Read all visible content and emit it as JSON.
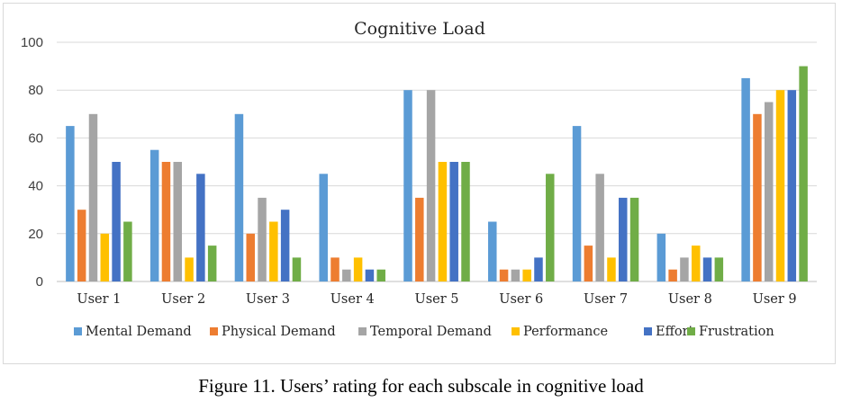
{
  "chart_data": {
    "type": "bar",
    "title": "Cognitive Load",
    "xlabel": "",
    "ylabel": "",
    "ylim": [
      0,
      100
    ],
    "yticks": [
      0,
      20,
      40,
      60,
      80,
      100
    ],
    "grid": true,
    "legend_position": "bottom",
    "categories": [
      "User 1",
      "User 2",
      "User 3",
      "User 4",
      "User 5",
      "User 6",
      "User 7",
      "User 8",
      "User 9"
    ],
    "series": [
      {
        "name": "Mental Demand",
        "color": "#5b9bd5",
        "values": [
          65,
          55,
          70,
          45,
          80,
          25,
          65,
          20,
          85
        ]
      },
      {
        "name": "Physical Demand",
        "color": "#ed7d31",
        "values": [
          30,
          50,
          20,
          10,
          35,
          5,
          15,
          5,
          70
        ]
      },
      {
        "name": "Temporal Demand",
        "color": "#a5a5a5",
        "values": [
          70,
          50,
          35,
          5,
          80,
          5,
          45,
          10,
          75
        ]
      },
      {
        "name": "Performance",
        "color": "#ffc000",
        "values": [
          20,
          10,
          25,
          10,
          50,
          5,
          10,
          15,
          80
        ]
      },
      {
        "name": "Effort",
        "color": "#4472c4",
        "values": [
          50,
          45,
          30,
          5,
          50,
          10,
          35,
          10,
          80
        ]
      },
      {
        "name": "Frustration",
        "color": "#70ad47",
        "values": [
          25,
          15,
          10,
          5,
          50,
          45,
          35,
          10,
          90
        ]
      }
    ]
  },
  "caption": "Figure 11.  Users’ rating for each subscale in cognitive load"
}
